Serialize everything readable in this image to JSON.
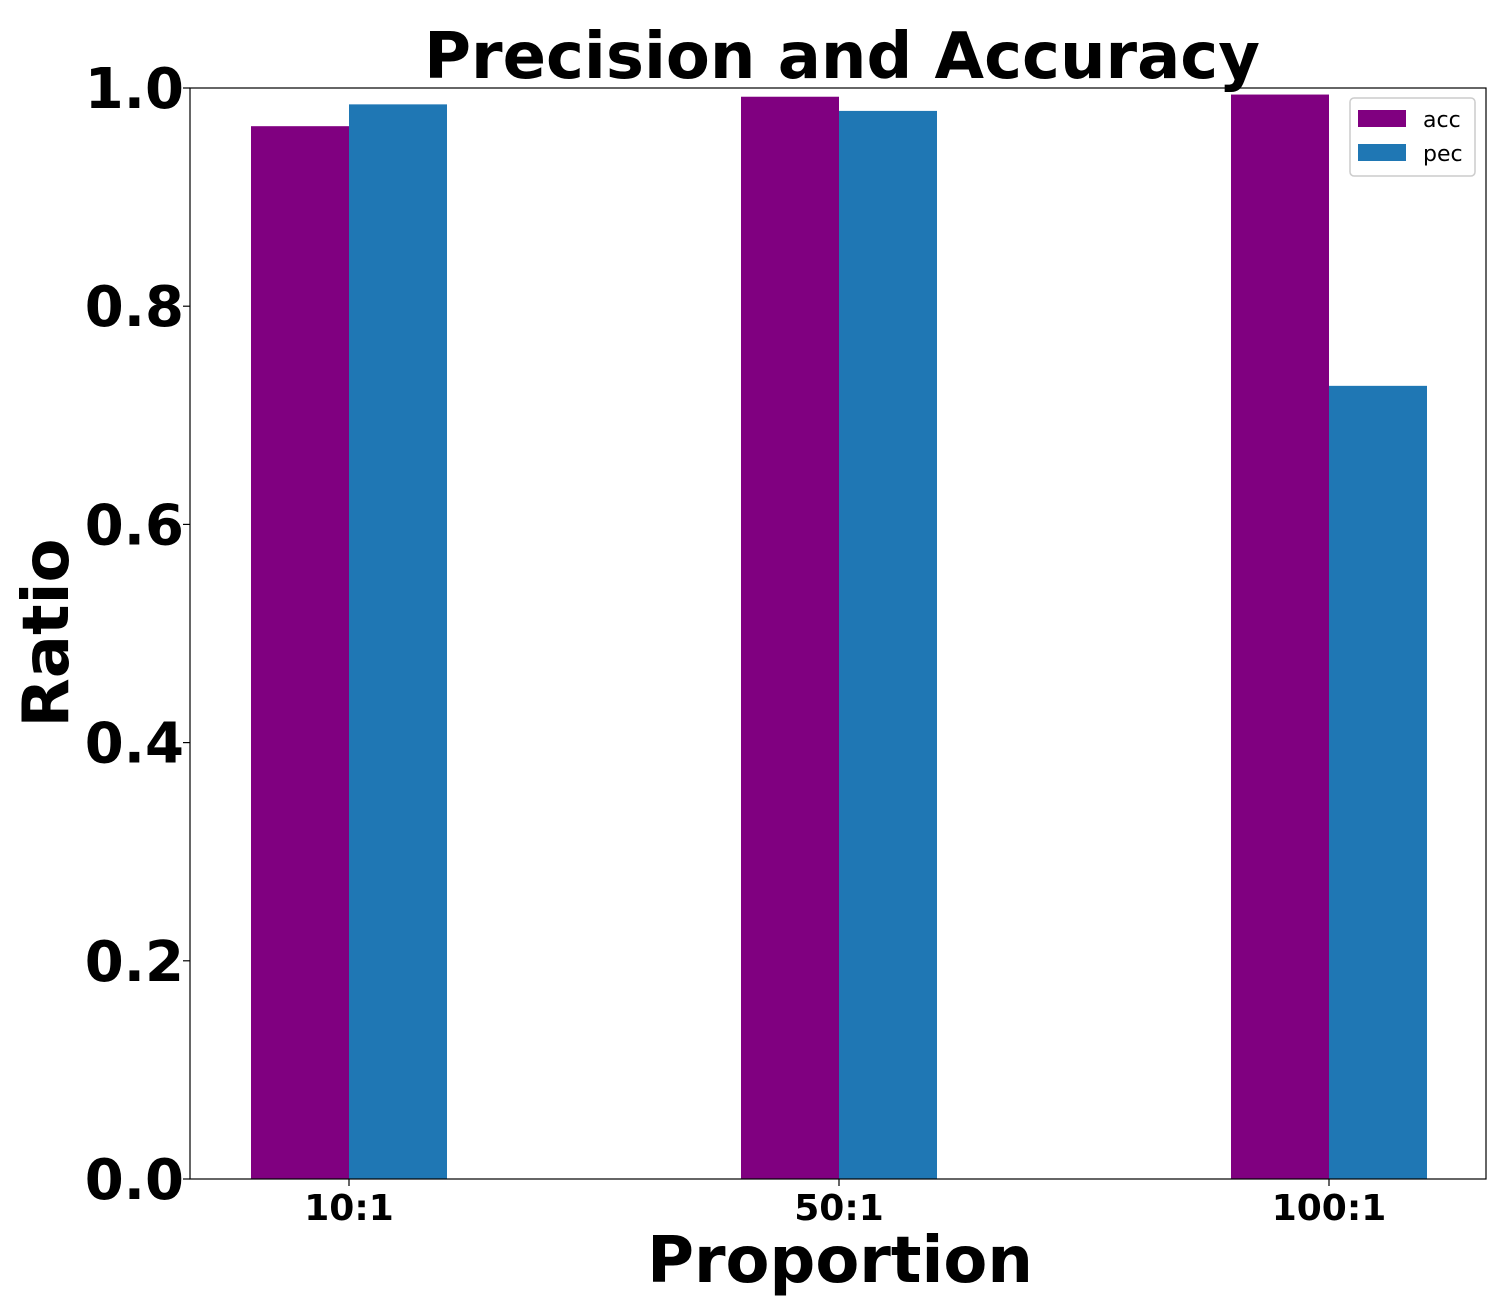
{
  "chart_data": {
    "type": "bar",
    "title": "Precision and Accuracy",
    "xlabel": "Proportion",
    "ylabel": "Ratio",
    "categories": [
      "10:1",
      "50:1",
      "100:1"
    ],
    "series": [
      {
        "name": "acc",
        "color": "#800080",
        "values": [
          0.965,
          0.992,
          0.994
        ]
      },
      {
        "name": "pec",
        "color": "#1f77b4",
        "values": [
          0.985,
          0.979,
          0.727
        ]
      }
    ],
    "ylim": [
      0,
      1.0
    ],
    "yticks": [
      "0.0",
      "0.2",
      "0.4",
      "0.6",
      "0.8",
      "1.0"
    ],
    "ytick_values": [
      0,
      0.2,
      0.4,
      0.6,
      0.8,
      1.0
    ],
    "grid": false,
    "legend_position": "top-right"
  }
}
